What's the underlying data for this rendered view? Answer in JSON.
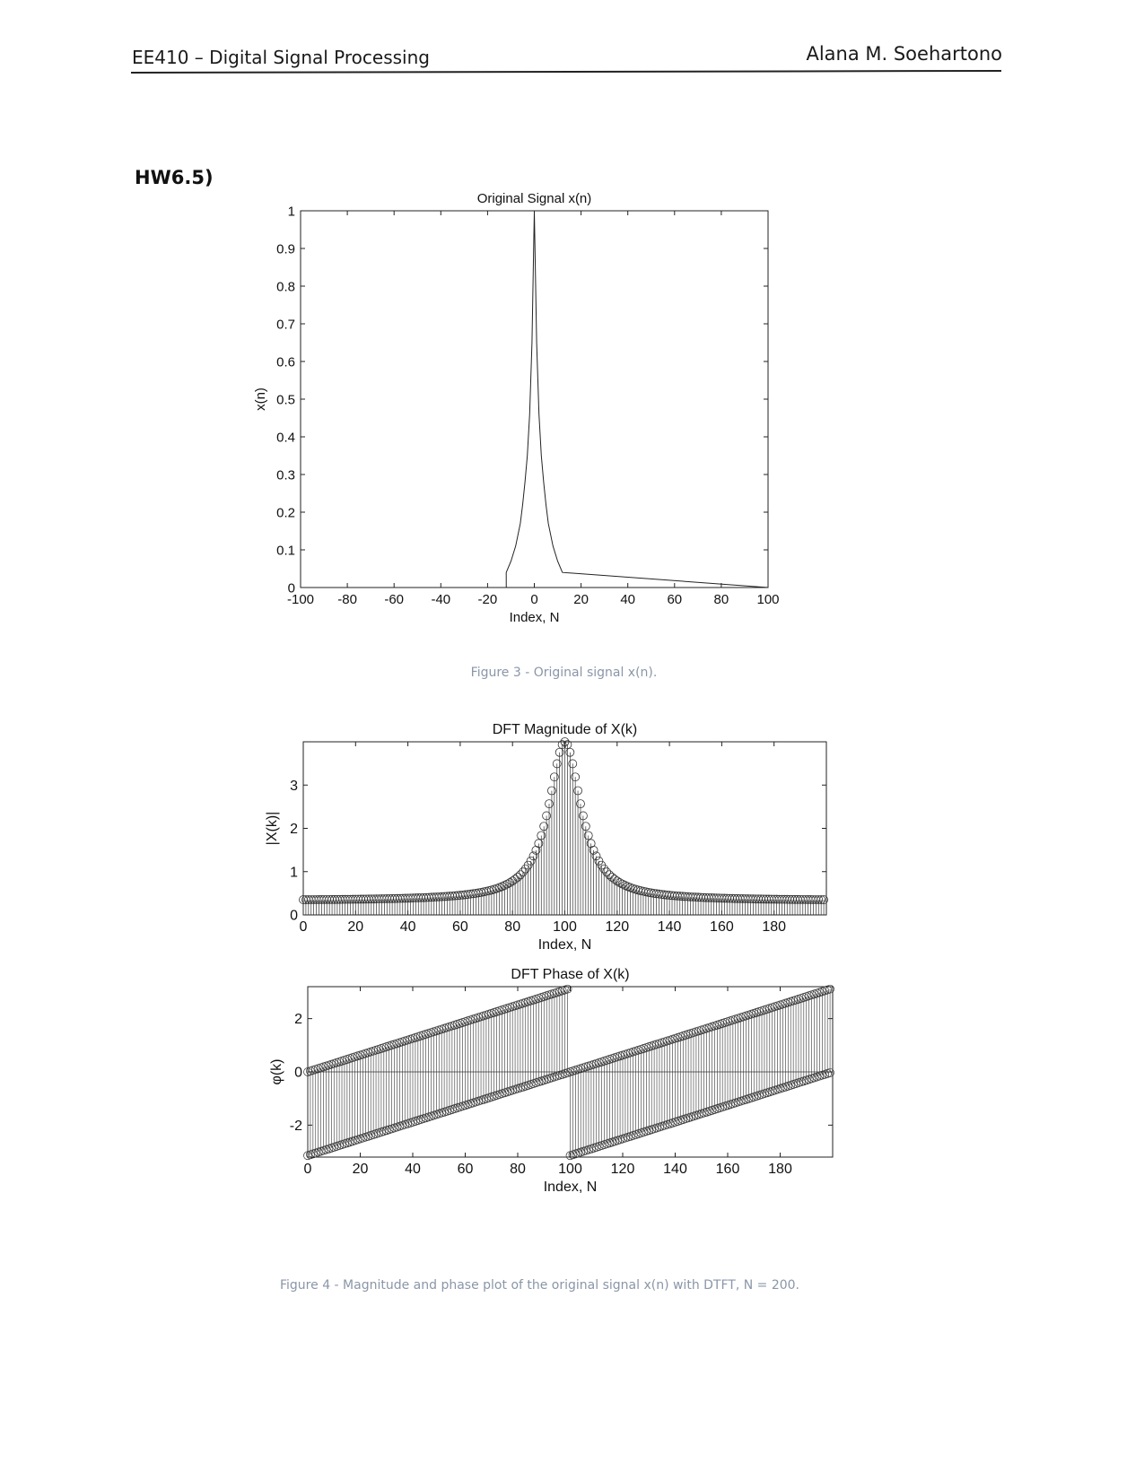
{
  "header": {
    "course": "EE410 – Digital Signal Processing",
    "author": "Alana M. Soehartono"
  },
  "section_title": "HW6.5)",
  "captions": {
    "figure3": "Figure 3 - Original signal x(n).",
    "figure4": "Figure 4 - Magnitude and phase plot of the original signal x(n) with DTFT, N = 200."
  },
  "chart_data": [
    {
      "type": "line",
      "title": "Original Signal x(n)",
      "xlabel": "Index, N",
      "ylabel": "x(n)",
      "xlim": [
        -100,
        100
      ],
      "ylim": [
        0,
        1
      ],
      "x_ticks": [
        -100,
        -80,
        -60,
        -40,
        -20,
        0,
        20,
        40,
        60,
        80,
        100
      ],
      "y_ticks": [
        0,
        0.1,
        0.2,
        0.3,
        0.4,
        0.5,
        0.6,
        0.7,
        0.8,
        0.9,
        1
      ],
      "x_tick_labels": [
        "-100",
        "-80",
        "-60",
        "-40",
        "-20",
        "0",
        "20",
        "40",
        "60",
        "80",
        "100"
      ],
      "y_tick_labels": [
        "0",
        "0.1",
        "0.2",
        "0.3",
        "0.4",
        "0.5",
        "0.6",
        "0.7",
        "0.8",
        "0.9",
        "1"
      ],
      "series": [
        {
          "x": [
            -12,
            -10,
            -8,
            -6,
            -5,
            -4,
            -3,
            -2,
            -1,
            0,
            1,
            2,
            3,
            4,
            5,
            6,
            8,
            10,
            12
          ],
          "values": [
            0.04,
            0.07,
            0.11,
            0.17,
            0.22,
            0.28,
            0.35,
            0.46,
            0.65,
            1.0,
            0.65,
            0.46,
            0.35,
            0.28,
            0.22,
            0.17,
            0.11,
            0.07,
            0.04
          ]
        }
      ],
      "grid": false
    },
    {
      "type": "stem",
      "title": "DFT Magnitude of X(k)",
      "xlabel": "Index, N",
      "ylabel": "|X(k)|",
      "xlim": [
        0,
        200
      ],
      "ylim": [
        0,
        4
      ],
      "x_ticks": [
        0,
        20,
        40,
        60,
        80,
        100,
        120,
        140,
        160,
        180
      ],
      "y_ticks": [
        0,
        1,
        2,
        3
      ],
      "x_tick_labels": [
        "0",
        "20",
        "40",
        "60",
        "80",
        "100",
        "120",
        "140",
        "160",
        "180"
      ],
      "y_tick_labels": [
        "0",
        "1",
        "2",
        "3"
      ],
      "n_points": 200,
      "peak_index": 100,
      "peak_value": 4.0,
      "edge_value": 0.33,
      "grid": false
    },
    {
      "type": "stem",
      "title": "DFT Phase of X(k)",
      "xlabel": "Index, N",
      "ylabel": "φ(k)",
      "xlim": [
        0,
        200
      ],
      "ylim": [
        -3.2,
        3.2
      ],
      "x_ticks": [
        0,
        20,
        40,
        60,
        80,
        100,
        120,
        140,
        160,
        180
      ],
      "y_ticks": [
        -2,
        0,
        2
      ],
      "x_tick_labels": [
        "0",
        "20",
        "40",
        "60",
        "80",
        "100",
        "120",
        "140",
        "160",
        "180"
      ],
      "y_tick_labels": [
        "-2",
        "0",
        "2"
      ],
      "n_points": 200,
      "wrap_index": 100,
      "grid": false
    }
  ]
}
